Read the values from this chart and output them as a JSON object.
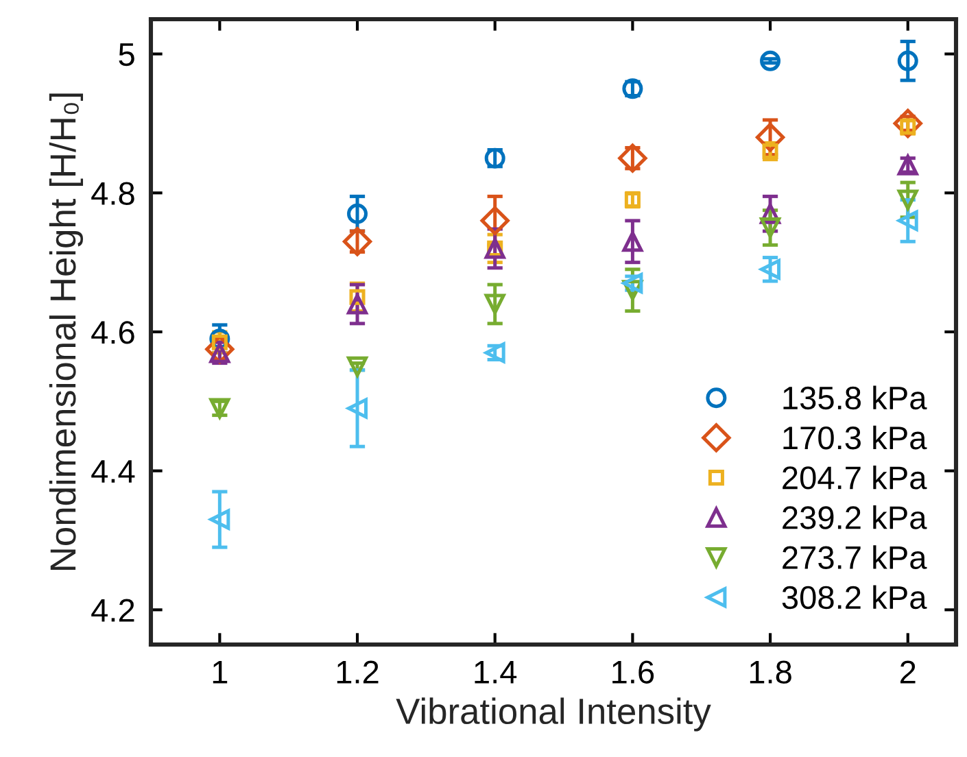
{
  "chart_data": {
    "type": "scatter",
    "xlabel": "Vibrational Intensity",
    "ylabel": "Nondimensional Height [H/H₀]",
    "x": [
      1,
      1.2,
      1.4,
      1.6,
      1.8,
      2
    ],
    "xlim": [
      0.9,
      2.07
    ],
    "ylim": [
      4.15,
      5.05
    ],
    "xticks": [
      1,
      1.2,
      1.4,
      1.6,
      1.8,
      2
    ],
    "yticks": [
      4.2,
      4.4,
      4.6,
      4.8,
      5
    ],
    "grid": false,
    "legend": "bottom right",
    "series": [
      {
        "name": "135.8 kPa",
        "color": "#0072bd",
        "marker": "circle",
        "values": [
          4.59,
          4.77,
          4.85,
          4.95,
          4.99,
          4.99
        ],
        "errors": [
          0.02,
          0.025,
          0.012,
          0.01,
          0.003,
          0.028
        ]
      },
      {
        "name": "170.3 kPa",
        "color": "#d95319",
        "marker": "diamond",
        "values": [
          4.575,
          4.73,
          4.76,
          4.85,
          4.88,
          4.9
        ],
        "errors": [
          0.015,
          0.015,
          0.035,
          0.015,
          0.025,
          0.01
        ]
      },
      {
        "name": "204.7 kPa",
        "color": "#edb120",
        "marker": "square",
        "values": [
          4.585,
          4.65,
          4.72,
          4.79,
          4.86,
          4.895
        ],
        "errors": [
          0.015,
          0.02,
          0.02,
          0.01,
          0.012,
          0.01
        ]
      },
      {
        "name": "239.2 kPa",
        "color": "#7e2f8e",
        "marker": "triangle",
        "values": [
          4.57,
          4.64,
          4.72,
          4.73,
          4.77,
          4.84
        ],
        "errors": [
          0.015,
          0.028,
          0.028,
          0.03,
          0.025,
          0.01
        ]
      },
      {
        "name": "273.7 kPa",
        "color": "#77ac30",
        "marker": "triangle_down",
        "values": [
          4.49,
          4.55,
          4.64,
          4.66,
          4.75,
          4.79
        ],
        "errors": [
          0.01,
          0.005,
          0.028,
          0.03,
          0.025,
          0.025
        ]
      },
      {
        "name": "308.2 kPa",
        "color": "#4dbeee",
        "marker": "triangle_left",
        "values": [
          4.33,
          4.49,
          4.57,
          4.67,
          4.69,
          4.76
        ],
        "errors": [
          0.04,
          0.055,
          0.01,
          0.01,
          0.017,
          0.03
        ]
      }
    ]
  }
}
